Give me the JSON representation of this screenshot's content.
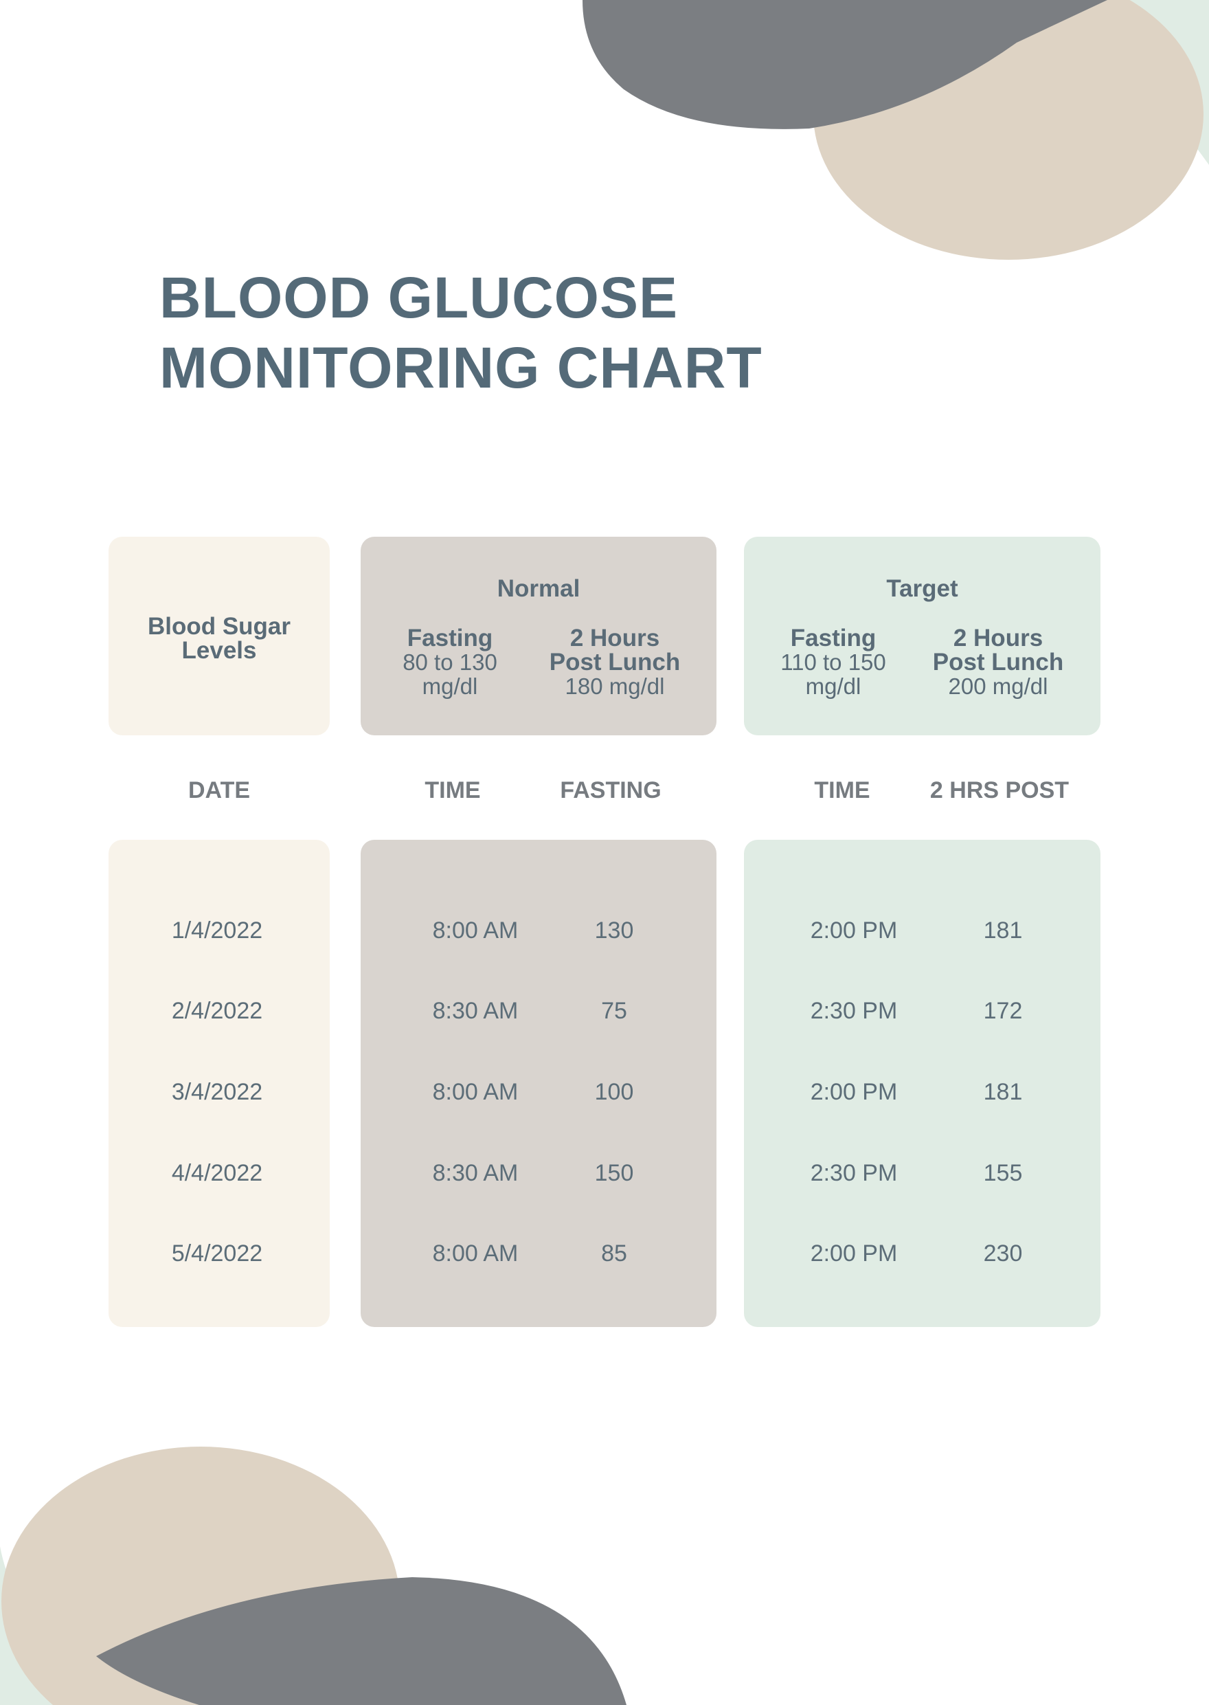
{
  "title_lines": [
    "BLOOD GLUCOSE",
    "MONITORING CHART"
  ],
  "legend": {
    "blood_sugar_label_lines": [
      "Blood Sugar",
      "Levels"
    ],
    "normal": {
      "heading": "Normal",
      "fasting_label": "Fasting",
      "fasting_range_lines": [
        "80 to 130",
        "mg/dl"
      ],
      "post_label_lines": [
        "2 Hours",
        "Post Lunch"
      ],
      "post_value": "180 mg/dl"
    },
    "target": {
      "heading": "Target",
      "fasting_label": "Fasting",
      "fasting_range_lines": [
        "110 to 150",
        "mg/dl"
      ],
      "post_label_lines": [
        "2 Hours",
        "Post Lunch"
      ],
      "post_value": "200 mg/dl"
    }
  },
  "columns": [
    "DATE",
    "TIME",
    "FASTING",
    "TIME",
    "2 HRS POST"
  ],
  "rows": [
    {
      "date": "1/4/2022",
      "fasting_time": "8:00 AM",
      "fasting": "130",
      "post_time": "2:00 PM",
      "post": "181"
    },
    {
      "date": "2/4/2022",
      "fasting_time": "8:30 AM",
      "fasting": "75",
      "post_time": "2:30 PM",
      "post": "172"
    },
    {
      "date": "3/4/2022",
      "fasting_time": "8:00 AM",
      "fasting": "100",
      "post_time": "2:00 PM",
      "post": "181"
    },
    {
      "date": "4/4/2022",
      "fasting_time": "8:30 AM",
      "fasting": "150",
      "post_time": "2:30 PM",
      "post": "155"
    },
    {
      "date": "5/4/2022",
      "fasting_time": "8:00 AM",
      "fasting": "85",
      "post_time": "2:00 PM",
      "post": "230"
    }
  ],
  "colors": {
    "title": "#546a78",
    "cream": "#f8f3ea",
    "taupe": "#d9d4cf",
    "mint": "#e0ece4",
    "slate_blob": "#7b7e82",
    "beige_blob": "#ded3c4"
  }
}
